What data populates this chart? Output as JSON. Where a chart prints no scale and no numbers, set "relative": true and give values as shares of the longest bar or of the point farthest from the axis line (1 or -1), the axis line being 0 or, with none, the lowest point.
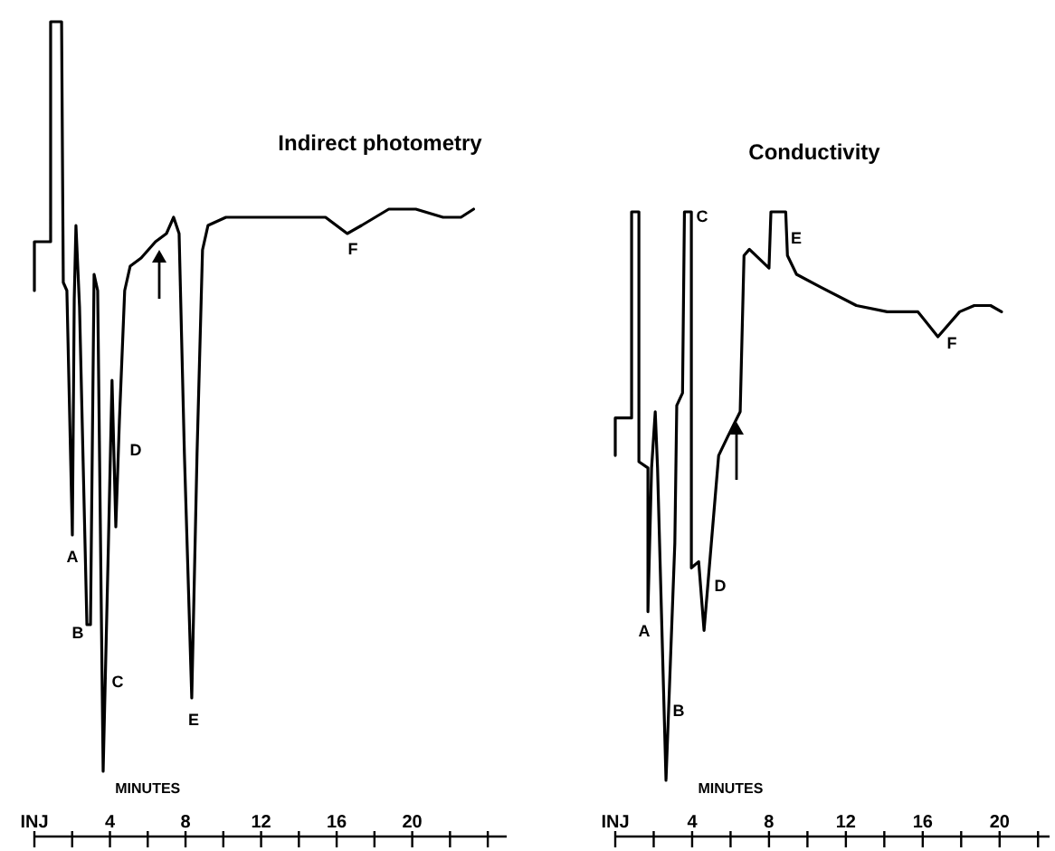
{
  "chart_data": [
    {
      "type": "line",
      "title": "Indirect photometry",
      "xlabel": "MINUTES",
      "relative": true,
      "tick_labels": "x",
      "marker": "none",
      "line_style": "solid",
      "xlim": [
        0,
        25
      ],
      "xticks": [
        {
          "value": 0,
          "label": "INJ"
        },
        {
          "value": 2,
          "label": null
        },
        4,
        {
          "value": 6,
          "label": null
        },
        8,
        {
          "value": 10,
          "label": null
        },
        12,
        {
          "value": 14,
          "label": null
        },
        16,
        {
          "value": 18,
          "label": null
        },
        20,
        {
          "value": 22,
          "label": null
        },
        {
          "value": 24,
          "label": null
        }
      ],
      "series": [
        {
          "color": "#000000",
          "x": [
            0,
            0,
            0.86,
            0.86,
            1.44,
            1.53,
            1.72,
            2.01,
            2.11,
            2.2,
            2.39,
            2.78,
            2.97,
            3.16,
            3.35,
            3.64,
            3.92,
            4.11,
            4.31,
            4.5,
            4.78,
            5.07,
            5.65,
            6.41,
            6.99,
            7.37,
            7.66,
            7.94,
            8.33,
            8.61,
            8.9,
            9.19,
            10.14,
            12.54,
            15.41,
            16.56,
            17.32,
            18.76,
            20.19,
            21.63,
            22.11,
            22.58,
            23.25
          ],
          "values": [
            0.67,
            0.73,
            0.73,
            1.0,
            1.0,
            0.68,
            0.67,
            0.37,
            0.66,
            0.75,
            0.65,
            0.26,
            0.26,
            0.69,
            0.67,
            0.08,
            0.36,
            0.56,
            0.38,
            0.51,
            0.67,
            0.7,
            0.71,
            0.73,
            0.74,
            0.76,
            0.74,
            0.47,
            0.17,
            0.47,
            0.72,
            0.75,
            0.76,
            0.76,
            0.76,
            0.74,
            0.75,
            0.77,
            0.77,
            0.76,
            0.76,
            0.76,
            0.77
          ]
        }
      ],
      "annotations": [
        "A",
        "B",
        "C",
        "D",
        "E",
        "F"
      ]
    },
    {
      "type": "line",
      "title": "Conductivity",
      "xlabel": "MINUTES",
      "relative": true,
      "tick_labels": "x",
      "marker": "none",
      "line_style": "solid",
      "xlim": [
        0,
        22.6
      ],
      "xticks": [
        {
          "value": 0,
          "label": "INJ"
        },
        {
          "value": 2,
          "label": null
        },
        4,
        {
          "value": 6,
          "label": null
        },
        8,
        {
          "value": 10,
          "label": null
        },
        12,
        {
          "value": 14,
          "label": null
        },
        16,
        {
          "value": 18,
          "label": null
        },
        20,
        {
          "value": 22,
          "label": null
        }
      ],
      "series": [
        {
          "color": "#000000",
          "x": [
            0,
            0,
            0.85,
            0.85,
            1.23,
            1.23,
            1.7,
            1.7,
            1.89,
            2.08,
            2.2,
            2.64,
            3.1,
            3.2,
            3.5,
            3.6,
            3.96,
            3.96,
            4.34,
            4.62,
            5.38,
            5.85,
            6.5,
            6.7,
            6.98,
            8.0,
            8.1,
            8.87,
            8.96,
            9.43,
            10.66,
            12.55,
            14.15,
            15.75,
            16.79,
            17.92,
            18.68,
            19.53,
            20.1
          ],
          "values": [
            0.61,
            0.67,
            0.67,
            1.0,
            1.0,
            0.6,
            0.59,
            0.36,
            0.59,
            0.68,
            0.59,
            0.09,
            0.47,
            0.69,
            0.71,
            1.0,
            1.0,
            0.43,
            0.44,
            0.33,
            0.61,
            0.64,
            0.68,
            0.93,
            0.94,
            0.91,
            1.0,
            1.0,
            0.93,
            0.9,
            0.88,
            0.85,
            0.84,
            0.84,
            0.8,
            0.84,
            0.85,
            0.85,
            0.84
          ]
        }
      ],
      "annotations": [
        "A",
        "B",
        "C",
        "D",
        "E",
        "F"
      ]
    }
  ]
}
